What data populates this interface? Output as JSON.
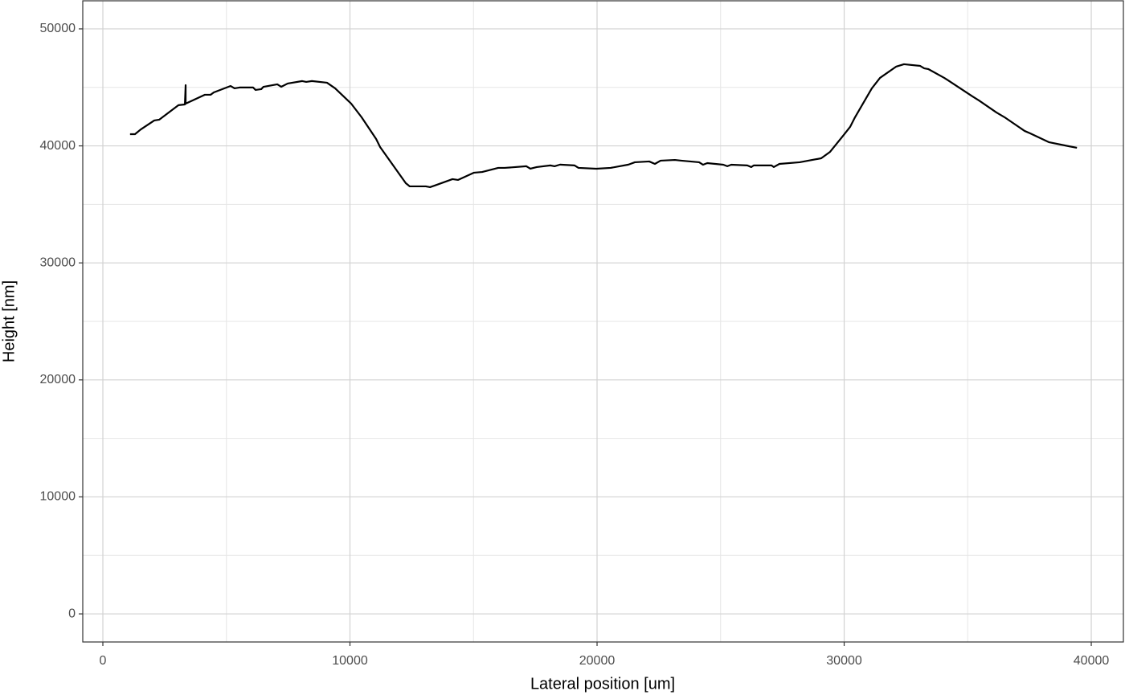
{
  "chart_data": {
    "type": "line",
    "x_label": "Lateral position [um]",
    "y_label": "Height [nm]",
    "xlim": [
      -813,
      41300
    ],
    "ylim": [
      -2400,
      52400
    ],
    "xticks": [
      0,
      10000,
      20000,
      30000,
      40000
    ],
    "yticks": [
      0,
      10000,
      20000,
      30000,
      40000,
      50000
    ],
    "x_minor_breaks": [
      5000,
      15000,
      25000,
      35000
    ],
    "y_minor_breaks": [
      5000,
      15000,
      25000,
      35000,
      45000
    ],
    "grid": true,
    "series": [
      {
        "color": "#000000",
        "x": [
          1100,
          1300,
          1530,
          2080,
          2280,
          3060,
          3320,
          3350,
          3350,
          4130,
          4360,
          4490,
          5170,
          5330,
          5530,
          6080,
          6180,
          6410,
          6500,
          7060,
          7220,
          7480,
          8070,
          8230,
          8460,
          9070,
          9400,
          10050,
          10470,
          11060,
          11220,
          12260,
          12420,
          13070,
          13240,
          13430,
          14150,
          14370,
          15020,
          15350,
          16000,
          16260,
          17140,
          17300,
          17560,
          18110,
          18280,
          18500,
          19090,
          19250,
          19970,
          20550,
          21270,
          21530,
          22110,
          22340,
          22570,
          23150,
          23410,
          24130,
          24290,
          24460,
          25110,
          25270,
          25430,
          26080,
          26240,
          26340,
          27060,
          27150,
          27380,
          28200,
          29070,
          29430,
          29980,
          30240,
          30440,
          31120,
          31450,
          32100,
          32420,
          33070,
          33240,
          33400,
          34050,
          34210,
          35190,
          35450,
          36160,
          36490,
          37300,
          37530,
          38280,
          39090,
          39420
        ],
        "values": [
          41000,
          41000,
          41400,
          42170,
          42240,
          43480,
          43540,
          45190,
          43610,
          44370,
          44370,
          44570,
          45120,
          44920,
          44990,
          44990,
          44780,
          44850,
          45050,
          45260,
          45050,
          45330,
          45540,
          45470,
          45540,
          45400,
          44920,
          43610,
          42450,
          40590,
          39900,
          36810,
          36540,
          36540,
          36470,
          36610,
          37160,
          37090,
          37710,
          37770,
          38120,
          38120,
          38260,
          38050,
          38190,
          38330,
          38260,
          38400,
          38330,
          38120,
          38050,
          38120,
          38400,
          38600,
          38670,
          38460,
          38740,
          38800,
          38740,
          38600,
          38390,
          38530,
          38390,
          38260,
          38390,
          38330,
          38190,
          38330,
          38330,
          38190,
          38460,
          38600,
          38940,
          39490,
          40930,
          41620,
          42450,
          44920,
          45810,
          46770,
          46980,
          46840,
          46630,
          46570,
          45810,
          45600,
          44230,
          43890,
          42860,
          42450,
          41280,
          41070,
          40320,
          39970,
          39840
        ]
      }
    ]
  }
}
